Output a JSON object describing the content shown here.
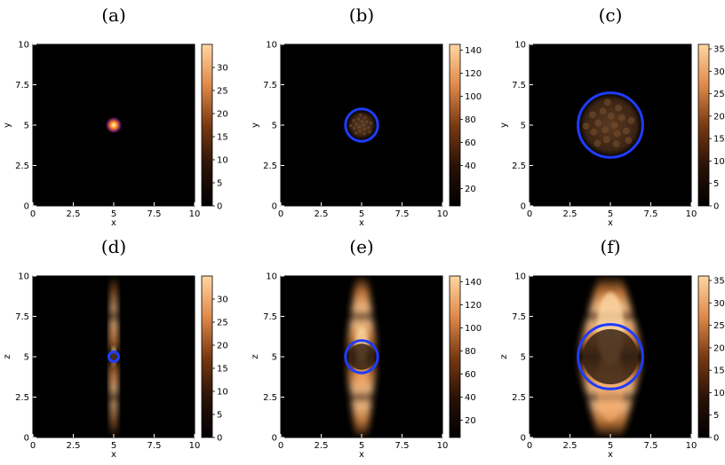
{
  "colors": {
    "background": "#000000",
    "circle": "#1f3cff",
    "cmap_low": "#000000",
    "cmap_high": "#ffd7a3"
  },
  "chart_data": [
    {
      "type": "heatmap",
      "panel": "(a)",
      "xlabel": "x",
      "ylabel": "y",
      "xlim": [
        0,
        10
      ],
      "ylim": [
        0,
        10
      ],
      "xticks": [
        "0",
        "2.5",
        "5",
        "7.5",
        "10"
      ],
      "yticks": [
        "0",
        "2.5",
        "5",
        "7.5",
        "10"
      ],
      "colorbar": {
        "range": [
          0,
          35
        ],
        "ticks": [
          "0",
          "5",
          "10",
          "15",
          "20",
          "25",
          "30"
        ]
      },
      "beam": {
        "kind": "spot",
        "center": [
          5,
          5
        ],
        "radius": 0.35
      },
      "circle": {
        "center": [
          5,
          5
        ],
        "radius": 0.0,
        "show": false
      }
    },
    {
      "type": "heatmap",
      "panel": "(b)",
      "xlabel": "x",
      "ylabel": "y",
      "xlim": [
        0,
        10
      ],
      "ylim": [
        0,
        10
      ],
      "xticks": [
        "0",
        "2.5",
        "5",
        "7.5",
        "10"
      ],
      "yticks": [
        "0",
        "2.5",
        "5",
        "7.5",
        "10"
      ],
      "colorbar": {
        "range": [
          5,
          145
        ],
        "ticks": [
          "20",
          "40",
          "60",
          "80",
          "100",
          "120",
          "140"
        ]
      },
      "beam": {
        "kind": "disk",
        "center": [
          5,
          5
        ],
        "radius": 0.8
      },
      "circle": {
        "center": [
          5,
          5
        ],
        "radius": 1.0,
        "show": true
      }
    },
    {
      "type": "heatmap",
      "panel": "(c)",
      "xlabel": "x",
      "ylabel": "y",
      "xlim": [
        0,
        10
      ],
      "ylim": [
        0,
        10
      ],
      "xticks": [
        "0",
        "2.5",
        "5",
        "7.5",
        "10"
      ],
      "yticks": [
        "0",
        "2.5",
        "5",
        "7.5",
        "10"
      ],
      "colorbar": {
        "range": [
          0,
          36
        ],
        "ticks": [
          "0",
          "5",
          "10",
          "15",
          "20",
          "25",
          "30",
          "35"
        ]
      },
      "beam": {
        "kind": "disk",
        "center": [
          5,
          5
        ],
        "radius": 1.8
      },
      "circle": {
        "center": [
          5,
          5
        ],
        "radius": 2.0,
        "show": true
      }
    },
    {
      "type": "heatmap",
      "panel": "(d)",
      "xlabel": "x",
      "ylabel": "z",
      "xlim": [
        0,
        10
      ],
      "ylim": [
        0,
        10
      ],
      "xticks": [
        "0",
        "2.5",
        "5",
        "7.5",
        "10"
      ],
      "yticks": [
        "0",
        "2.5",
        "5",
        "7.5",
        "10"
      ],
      "colorbar": {
        "range": [
          0,
          35
        ],
        "ticks": [
          "0",
          "5",
          "10",
          "15",
          "20",
          "25",
          "30"
        ]
      },
      "beam": {
        "kind": "cone",
        "center": [
          5,
          5
        ],
        "radius": 0.3
      },
      "circle": {
        "center": [
          5,
          5
        ],
        "radius": 0.3,
        "show": true
      }
    },
    {
      "type": "heatmap",
      "panel": "(e)",
      "xlabel": "x",
      "ylabel": "z",
      "xlim": [
        0,
        10
      ],
      "ylim": [
        0,
        10
      ],
      "xticks": [
        "0",
        "2.5",
        "5",
        "7.5",
        "10"
      ],
      "yticks": [
        "0",
        "2.5",
        "5",
        "7.5",
        "10"
      ],
      "colorbar": {
        "range": [
          5,
          145
        ],
        "ticks": [
          "20",
          "40",
          "60",
          "80",
          "100",
          "120",
          "140"
        ]
      },
      "beam": {
        "kind": "cone",
        "center": [
          5,
          5
        ],
        "radius": 0.9
      },
      "circle": {
        "center": [
          5,
          5
        ],
        "radius": 1.0,
        "show": true
      }
    },
    {
      "type": "heatmap",
      "panel": "(f)",
      "xlabel": "x",
      "ylabel": "z",
      "xlim": [
        0,
        10
      ],
      "ylim": [
        0,
        10
      ],
      "xticks": [
        "0",
        "2.5",
        "5",
        "7.5",
        "10"
      ],
      "yticks": [
        "0",
        "2.5",
        "5",
        "7.5",
        "10"
      ],
      "colorbar": {
        "range": [
          0,
          36
        ],
        "ticks": [
          "0",
          "5",
          "10",
          "15",
          "20",
          "25",
          "30",
          "35"
        ]
      },
      "beam": {
        "kind": "cone",
        "center": [
          5,
          5
        ],
        "radius": 1.9
      },
      "circle": {
        "center": [
          5,
          5
        ],
        "radius": 2.0,
        "show": true
      }
    }
  ]
}
